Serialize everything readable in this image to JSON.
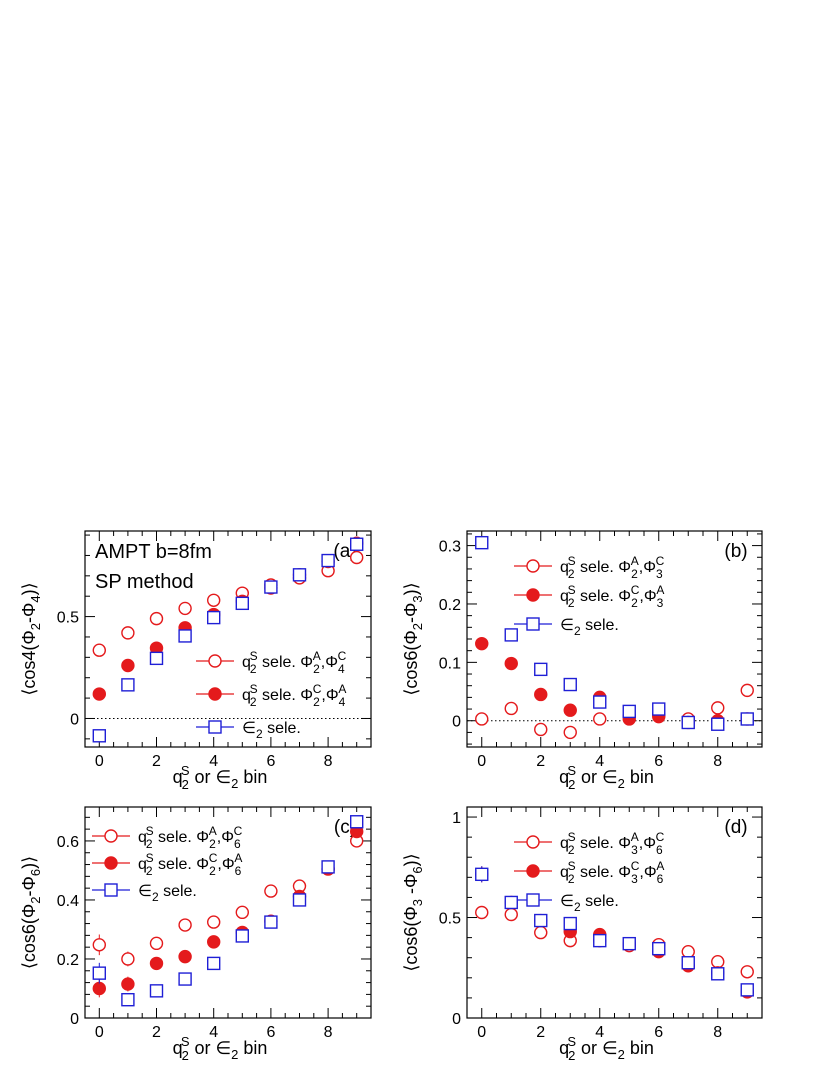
{
  "chart_data": [
    {
      "type": "scatter",
      "panel_label": "(a)",
      "annotations": [
        "AMPT b=8fm",
        "SP method"
      ],
      "ylabel": "⟨cos4(Φ2-Φ4)⟩",
      "xlabel": "q2S or ∈2 bin",
      "xlim": [
        -0.5,
        9.5
      ],
      "ylim": [
        -0.14,
        0.92
      ],
      "xticks": [
        0,
        2,
        4,
        6,
        8
      ],
      "yticks": [
        0,
        0.5
      ],
      "ytick_labels": [
        "0",
        "0.5"
      ],
      "zero_line": true,
      "legend_position": "lower-right",
      "series": [
        {
          "name": "q2S sele. Φ2A,Φ4C",
          "marker": "open-circle",
          "color": "#e41a1c",
          "x": [
            0,
            1,
            2,
            3,
            4,
            5,
            6,
            7,
            8,
            9
          ],
          "y": [
            0.335,
            0.42,
            0.49,
            0.54,
            0.58,
            0.615,
            0.655,
            0.69,
            0.725,
            0.79
          ],
          "err": [
            0.01,
            0.01,
            0.01,
            0.01,
            0.01,
            0.01,
            0.01,
            0.01,
            0.01,
            0.01
          ]
        },
        {
          "name": "q2S sele. Φ2C,Φ4A",
          "marker": "filled-circle",
          "color": "#e41a1c",
          "x": [
            0,
            1,
            2,
            3,
            4,
            5,
            6,
            7,
            8,
            9
          ],
          "y": [
            0.12,
            0.26,
            0.345,
            0.445,
            0.51,
            0.575,
            0.64,
            0.705,
            0.77,
            0.86
          ],
          "err": [
            0.01,
            0.01,
            0.01,
            0.01,
            0.01,
            0.01,
            0.01,
            0.01,
            0.01,
            0.01
          ]
        },
        {
          "name": "∈2 sele.",
          "marker": "open-square",
          "color": "#1f1fd6",
          "x": [
            0,
            1,
            2,
            3,
            4,
            5,
            6,
            7,
            8,
            9
          ],
          "y": [
            -0.085,
            0.165,
            0.295,
            0.405,
            0.495,
            0.565,
            0.645,
            0.705,
            0.775,
            0.855
          ],
          "err": [
            0.01,
            0.01,
            0.01,
            0.01,
            0.01,
            0.01,
            0.01,
            0.01,
            0.01,
            0.01
          ]
        }
      ]
    },
    {
      "type": "scatter",
      "panel_label": "(b)",
      "annotations": [],
      "ylabel": "⟨cos6(Φ2-Φ3)⟩",
      "xlabel": "q2S or ∈2 bin",
      "xlim": [
        -0.5,
        9.5
      ],
      "ylim": [
        -0.045,
        0.325
      ],
      "xticks": [
        0,
        2,
        4,
        6,
        8
      ],
      "yticks": [
        0,
        0.1,
        0.2,
        0.3
      ],
      "ytick_labels": [
        "0",
        "0.1",
        "0.2",
        "0.3"
      ],
      "zero_line": true,
      "legend_position": "top-center",
      "series": [
        {
          "name": "q2S sele. Φ2A,Φ3C",
          "marker": "open-circle",
          "color": "#e41a1c",
          "x": [
            0,
            1,
            2,
            3,
            4,
            5,
            6,
            7,
            8,
            9
          ],
          "y": [
            0.003,
            0.021,
            -0.015,
            -0.02,
            0.003,
            0.008,
            0.01,
            0.003,
            0.022,
            0.052
          ],
          "err": [
            0.007,
            0.004,
            0.004,
            0.004,
            0.004,
            0.004,
            0.004,
            0.004,
            0.004,
            0.004
          ]
        },
        {
          "name": "q2S sele. Φ2C,Φ3A",
          "marker": "filled-circle",
          "color": "#e41a1c",
          "x": [
            0,
            1,
            2,
            3,
            4,
            5,
            6,
            7,
            8,
            9
          ],
          "y": [
            0.132,
            0.098,
            0.045,
            0.018,
            0.04,
            0.003,
            0.007,
            -0.003,
            0.0,
            0.003
          ],
          "err": [
            0.007,
            0.004,
            0.004,
            0.004,
            0.004,
            0.004,
            0.004,
            0.004,
            0.004,
            0.004
          ]
        },
        {
          "name": "∈2 sele.",
          "marker": "open-square",
          "color": "#1f1fd6",
          "x": [
            0,
            1,
            2,
            3,
            4,
            5,
            6,
            7,
            8,
            9
          ],
          "y": [
            0.305,
            0.147,
            0.088,
            0.062,
            0.032,
            0.016,
            0.02,
            -0.003,
            -0.006,
            0.003
          ],
          "err": [
            0.01,
            0.004,
            0.004,
            0.004,
            0.004,
            0.004,
            0.004,
            0.004,
            0.004,
            0.004
          ]
        }
      ]
    },
    {
      "type": "scatter",
      "panel_label": "(c)",
      "annotations": [],
      "ylabel": "⟨cos6(Φ2-Φ6)⟩",
      "xlabel": "q2S or ∈2 bin",
      "xlim": [
        -0.5,
        9.5
      ],
      "ylim": [
        0,
        0.715
      ],
      "xticks": [
        0,
        2,
        4,
        6,
        8
      ],
      "yticks": [
        0,
        0.2,
        0.4,
        0.6
      ],
      "ytick_labels": [
        "0",
        "0.2",
        "0.4",
        "0.6"
      ],
      "zero_line": false,
      "legend_position": "top-left",
      "series": [
        {
          "name": "q2S sele. Φ2A,Φ6C",
          "marker": "open-circle",
          "color": "#e41a1c",
          "x": [
            0,
            1,
            2,
            3,
            4,
            5,
            6,
            7,
            8,
            9
          ],
          "y": [
            0.248,
            0.2,
            0.253,
            0.315,
            0.325,
            0.358,
            0.43,
            0.447,
            0.505,
            0.6
          ],
          "err": [
            0.035,
            0.025,
            0.02,
            0.015,
            0.012,
            0.01,
            0.01,
            0.01,
            0.01,
            0.01
          ]
        },
        {
          "name": "q2S sele. Φ2C,Φ6A",
          "marker": "filled-circle",
          "color": "#e41a1c",
          "x": [
            0,
            1,
            2,
            3,
            4,
            5,
            6,
            7,
            8,
            9
          ],
          "y": [
            0.1,
            0.115,
            0.185,
            0.208,
            0.258,
            0.29,
            0.328,
            0.412,
            0.505,
            0.632
          ],
          "err": [
            0.03,
            0.025,
            0.02,
            0.015,
            0.012,
            0.01,
            0.01,
            0.01,
            0.01,
            0.01
          ]
        },
        {
          "name": "∈2 sele.",
          "marker": "open-square",
          "color": "#1f1fd6",
          "x": [
            0,
            1,
            2,
            3,
            4,
            5,
            6,
            7,
            8,
            9
          ],
          "y": [
            0.152,
            0.062,
            0.092,
            0.132,
            0.185,
            0.278,
            0.325,
            0.4,
            0.512,
            0.665
          ],
          "err": [
            0.035,
            0.02,
            0.015,
            0.012,
            0.01,
            0.01,
            0.01,
            0.01,
            0.01,
            0.01
          ]
        }
      ]
    },
    {
      "type": "scatter",
      "panel_label": "(d)",
      "annotations": [],
      "ylabel": "⟨cos6(Φ3-Φ6)⟩",
      "xlabel": "q2S or ∈2 bin",
      "xlim": [
        -0.5,
        9.5
      ],
      "ylim": [
        0,
        1.05
      ],
      "xticks": [
        0,
        2,
        4,
        6,
        8
      ],
      "yticks": [
        0,
        0.5,
        1
      ],
      "ytick_labels": [
        "0",
        "0.5",
        "1"
      ],
      "zero_line": false,
      "legend_position": "top-center",
      "series": [
        {
          "name": "q2S sele. Φ3A,Φ6C",
          "marker": "open-circle",
          "color": "#e41a1c",
          "x": [
            0,
            1,
            2,
            3,
            4,
            5,
            6,
            7,
            8,
            9
          ],
          "y": [
            0.525,
            0.515,
            0.425,
            0.385,
            0.385,
            0.36,
            0.365,
            0.33,
            0.28,
            0.23
          ],
          "err": [
            0.015,
            0.015,
            0.012,
            0.012,
            0.012,
            0.012,
            0.012,
            0.012,
            0.012,
            0.012
          ]
        },
        {
          "name": "q2S sele. Φ3C,Φ6A",
          "marker": "filled-circle",
          "color": "#e41a1c",
          "x": [
            0,
            1,
            2,
            3,
            4,
            5,
            6,
            7,
            8,
            9
          ],
          "y": [
            0.715,
            0.575,
            0.485,
            0.43,
            0.415,
            0.37,
            0.33,
            0.26,
            0.225,
            0.13
          ],
          "err": [
            0.04,
            0.025,
            0.02,
            0.015,
            0.012,
            0.012,
            0.012,
            0.012,
            0.012,
            0.012
          ]
        },
        {
          "name": "∈2 sele.",
          "marker": "open-square",
          "color": "#1f1fd6",
          "x": [
            0,
            1,
            2,
            3,
            4,
            5,
            6,
            7,
            8,
            9
          ],
          "y": [
            0.715,
            0.575,
            0.485,
            0.47,
            0.385,
            0.37,
            0.345,
            0.275,
            0.22,
            0.14
          ],
          "err": [
            0.04,
            0.02,
            0.015,
            0.015,
            0.012,
            0.012,
            0.012,
            0.012,
            0.012,
            0.012
          ]
        }
      ]
    }
  ]
}
